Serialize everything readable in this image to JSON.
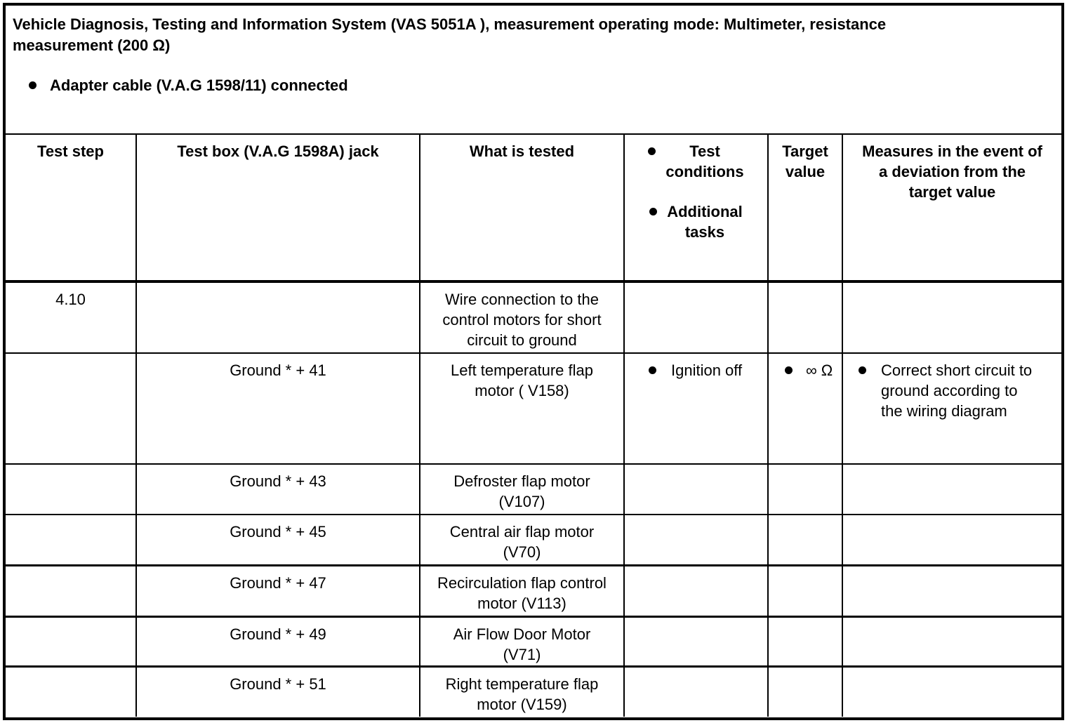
{
  "title": "Vehicle Diagnosis, Testing and Information System (VAS 5051A ), measurement operating mode: Multimeter, resistance\nmeasurement (200 Ω)",
  "notes": [
    {
      "text": "Adapter cable (V.A.G 1598/11) connected"
    }
  ],
  "table": {
    "headers": {
      "step": "Test step",
      "jack": "Test box (V.A.G 1598A) jack",
      "tested": "What is tested",
      "conditions_items": [
        "Test\nconditions",
        "Additional\ntasks"
      ],
      "target": "Target value",
      "measures": "Measures in the event of\na deviation from the\ntarget value"
    },
    "rows": [
      {
        "step": "4.10",
        "jack": "",
        "tested": "Wire connection to the\ncontrol motors for short\ncircuit to ground",
        "conditions": [],
        "target": [],
        "measures": []
      },
      {
        "step": "",
        "jack": "Ground * + 41",
        "tested": "Left temperature flap\nmotor ( V158)",
        "conditions": [
          "Ignition off"
        ],
        "target": [
          "∞ Ω"
        ],
        "measures": [
          "Correct short circuit to\nground according to\nthe wiring diagram"
        ]
      },
      {
        "step": "",
        "jack": "Ground * + 43",
        "tested": "Defroster flap motor\n(V107)",
        "conditions": [],
        "target": [],
        "measures": []
      },
      {
        "step": "",
        "jack": "Ground * + 45",
        "tested": "Central air flap motor\n(V70)",
        "conditions": [],
        "target": [],
        "measures": []
      },
      {
        "step": "",
        "jack": "Ground * + 47",
        "tested": "Recirculation flap control\nmotor (V113)",
        "conditions": [],
        "target": [],
        "measures": []
      },
      {
        "step": "",
        "jack": "Ground * + 49",
        "tested": "Air Flow Door Motor\n(V71)",
        "conditions": [],
        "target": [],
        "measures": []
      },
      {
        "step": "",
        "jack": "Ground * + 51",
        "tested": "Right temperature flap\nmotor (V159)",
        "conditions": [],
        "target": [],
        "measures": []
      }
    ]
  },
  "colors": {
    "text": "#000000",
    "border": "#000000",
    "background": "#ffffff"
  }
}
